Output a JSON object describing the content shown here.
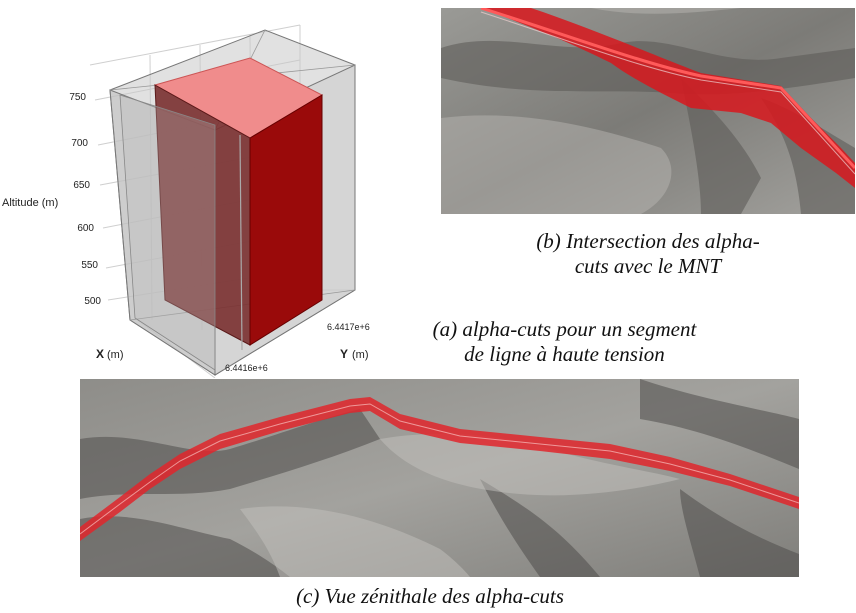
{
  "figure": {
    "panel_a": {
      "z_axis_label": "Altitude (m)",
      "z_ticks": [
        "750",
        "700",
        "650",
        "600",
        "550",
        "500"
      ],
      "x_axis_label": "X",
      "x_axis_unit": "(m)",
      "y_axis_label": "Y",
      "y_axis_unit": "(m)",
      "y_ticks": [
        "6.4417e+6",
        "6.4416e+6"
      ],
      "caption_label": "(a)",
      "caption_line1": "alpha-cuts pour un segment",
      "caption_line2": "de ligne à haute tension"
    },
    "panel_b": {
      "caption_label": "(b)",
      "caption_line1": "Intersection des alpha-",
      "caption_line2": "cuts avec le MNT"
    },
    "panel_c": {
      "caption_label": "(c)",
      "caption_line1": "Vue zénithale des alpha-cuts"
    },
    "colors": {
      "alpha_cut_red": "#e0262b",
      "terrain_gray": "#8a8985",
      "box_dark_red": "#9a0a0a"
    }
  }
}
